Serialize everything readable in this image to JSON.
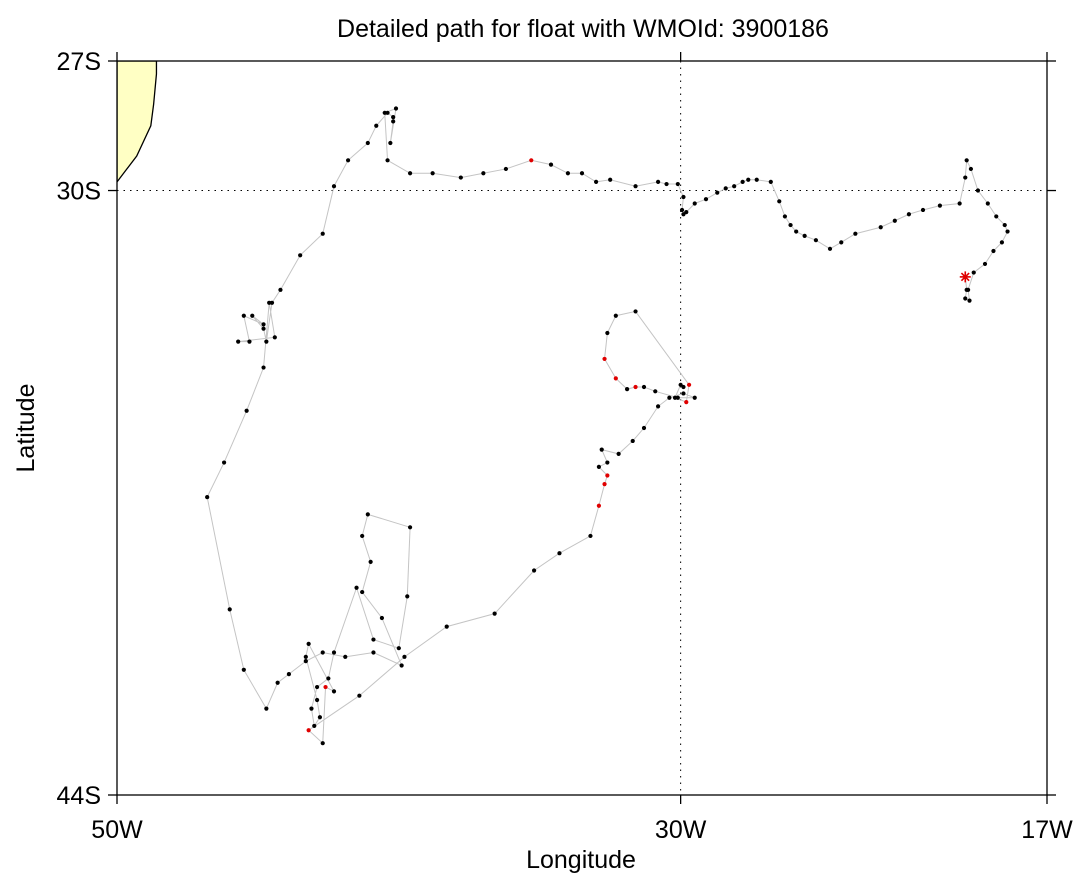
{
  "chart_data": {
    "type": "scatter",
    "title": "Detailed path for float with WMOId: 3900186",
    "xlabel": "Longitude",
    "ylabel": "Latitude",
    "xlim": [
      -50,
      -17
    ],
    "ylim": [
      -44,
      -27
    ],
    "x_ticks": [
      {
        "value": -50,
        "label": "50W"
      },
      {
        "value": -30,
        "label": "30W"
      },
      {
        "value": -17,
        "label": "17W"
      }
    ],
    "y_ticks": [
      {
        "value": -27,
        "label": "27S"
      },
      {
        "value": -30,
        "label": "30S"
      },
      {
        "value": -44,
        "label": "44S"
      }
    ],
    "grid": {
      "x": [
        -30
      ],
      "y": [
        -30
      ],
      "style": "dotted"
    },
    "colors": {
      "path": "#c4c4c4",
      "point": "#000000",
      "highlight": "#e00000",
      "land": "#ffffc4",
      "coast": "#000000"
    },
    "land": [
      [
        -50,
        -27
      ],
      [
        -48.6,
        -27
      ],
      [
        -48.6,
        -27.3
      ],
      [
        -48.7,
        -28.0
      ],
      [
        -48.8,
        -28.5
      ],
      [
        -49.3,
        -29.2
      ],
      [
        -50,
        -29.8
      ]
    ],
    "start": {
      "lon": -19.9,
      "lat": -32.0
    },
    "path": [
      [
        -19.9,
        -32.0,
        0
      ],
      [
        -19.85,
        -32.3,
        0
      ],
      [
        -19.9,
        -32.5,
        0
      ],
      [
        -19.75,
        -32.55,
        0
      ],
      [
        -19.8,
        -32.3,
        0
      ],
      [
        -19.6,
        -31.9,
        0
      ],
      [
        -19.2,
        -31.7,
        0
      ],
      [
        -18.9,
        -31.4,
        0
      ],
      [
        -18.6,
        -31.2,
        0
      ],
      [
        -18.4,
        -30.95,
        0
      ],
      [
        -18.5,
        -30.8,
        0
      ],
      [
        -18.8,
        -30.6,
        0
      ],
      [
        -19.1,
        -30.3,
        0
      ],
      [
        -19.45,
        -30.0,
        0
      ],
      [
        -19.7,
        -29.5,
        0
      ],
      [
        -19.85,
        -29.3,
        0
      ],
      [
        -19.9,
        -29.7,
        0
      ],
      [
        -20.1,
        -30.3,
        0
      ],
      [
        -20.8,
        -30.35,
        0
      ],
      [
        -21.4,
        -30.45,
        0
      ],
      [
        -21.9,
        -30.55,
        0
      ],
      [
        -22.4,
        -30.7,
        0
      ],
      [
        -22.9,
        -30.85,
        0
      ],
      [
        -23.8,
        -31.0,
        0
      ],
      [
        -24.3,
        -31.2,
        0
      ],
      [
        -24.7,
        -31.35,
        0
      ],
      [
        -25.2,
        -31.15,
        0
      ],
      [
        -25.6,
        -31.05,
        0
      ],
      [
        -25.9,
        -30.95,
        0
      ],
      [
        -26.1,
        -30.8,
        0
      ],
      [
        -26.3,
        -30.6,
        0
      ],
      [
        -26.5,
        -30.25,
        0
      ],
      [
        -26.8,
        -29.8,
        0
      ],
      [
        -27.3,
        -29.75,
        0
      ],
      [
        -27.6,
        -29.75,
        0
      ],
      [
        -27.8,
        -29.8,
        0
      ],
      [
        -28.1,
        -29.9,
        0
      ],
      [
        -28.4,
        -29.95,
        0
      ],
      [
        -28.7,
        -30.05,
        0
      ],
      [
        -29.1,
        -30.2,
        0
      ],
      [
        -29.5,
        -30.3,
        0
      ],
      [
        -29.8,
        -30.5,
        0
      ],
      [
        -29.9,
        -30.55,
        0
      ],
      [
        -29.95,
        -30.45,
        0
      ],
      [
        -29.9,
        -30.15,
        0
      ],
      [
        -30.1,
        -29.85,
        0
      ],
      [
        -30.5,
        -29.85,
        0
      ],
      [
        -30.8,
        -29.8,
        0
      ],
      [
        -31.6,
        -29.9,
        0
      ],
      [
        -32.5,
        -29.75,
        0
      ],
      [
        -33.0,
        -29.8,
        0
      ],
      [
        -33.5,
        -29.6,
        0
      ],
      [
        -34.0,
        -29.6,
        0
      ],
      [
        -34.6,
        -29.4,
        0
      ],
      [
        -35.3,
        -29.3,
        1
      ],
      [
        -36.2,
        -29.5,
        0
      ],
      [
        -37.0,
        -29.6,
        0
      ],
      [
        -37.8,
        -29.7,
        0
      ],
      [
        -38.8,
        -29.6,
        0
      ],
      [
        -39.6,
        -29.6,
        0
      ],
      [
        -40.4,
        -29.3,
        0
      ],
      [
        -40.5,
        -28.2,
        0
      ],
      [
        -40.1,
        -28.1,
        0
      ],
      [
        -40.3,
        -28.9,
        0
      ],
      [
        -40.2,
        -28.4,
        0
      ],
      [
        -40.2,
        -28.3,
        0
      ],
      [
        -40.4,
        -28.2,
        0
      ],
      [
        -40.8,
        -28.5,
        0
      ],
      [
        -41.1,
        -28.9,
        0
      ],
      [
        -41.8,
        -29.3,
        0
      ],
      [
        -42.3,
        -29.9,
        0
      ],
      [
        -42.7,
        -31.0,
        0
      ],
      [
        -43.5,
        -31.5,
        0
      ],
      [
        -44.2,
        -32.3,
        0
      ],
      [
        -44.5,
        -32.6,
        0
      ],
      [
        -44.7,
        -33.5,
        0
      ],
      [
        -44.8,
        -33.2,
        0
      ],
      [
        -45.2,
        -32.9,
        0
      ],
      [
        -44.8,
        -33.1,
        0
      ],
      [
        -45.5,
        -32.9,
        0
      ],
      [
        -45.3,
        -33.5,
        0
      ],
      [
        -45.7,
        -33.5,
        0
      ],
      [
        -44.4,
        -33.4,
        0
      ],
      [
        -44.6,
        -32.6,
        0
      ],
      [
        -44.8,
        -34.1,
        0
      ],
      [
        -45.4,
        -35.1,
        0
      ],
      [
        -46.2,
        -36.3,
        0
      ],
      [
        -46.8,
        -37.1,
        0
      ],
      [
        -46.0,
        -39.7,
        0
      ],
      [
        -45.5,
        -41.1,
        0
      ],
      [
        -44.7,
        -42.0,
        0
      ],
      [
        -44.3,
        -41.4,
        0
      ],
      [
        -43.9,
        -41.2,
        0
      ],
      [
        -43.3,
        -40.9,
        0
      ],
      [
        -42.7,
        -40.7,
        0
      ],
      [
        -41.9,
        -40.8,
        0
      ],
      [
        -40.9,
        -40.7,
        0
      ],
      [
        -39.9,
        -41.0,
        0
      ],
      [
        -40.6,
        -39.9,
        0
      ],
      [
        -41.3,
        -39.3,
        0
      ],
      [
        -41.0,
        -38.6,
        0
      ],
      [
        -41.3,
        -38.0,
        0
      ],
      [
        -41.1,
        -37.5,
        0
      ],
      [
        -39.6,
        -37.8,
        0
      ],
      [
        -39.7,
        -39.4,
        0
      ],
      [
        -40.0,
        -40.6,
        0
      ],
      [
        -40.9,
        -40.4,
        0
      ],
      [
        -41.5,
        -39.2,
        0
      ],
      [
        -42.3,
        -40.7,
        0
      ],
      [
        -42.5,
        -41.3,
        0
      ],
      [
        -42.9,
        -41.5,
        0
      ],
      [
        -43.1,
        -42.0,
        0
      ],
      [
        -43.0,
        -42.4,
        0
      ],
      [
        -42.8,
        -42.2,
        0
      ],
      [
        -42.9,
        -41.8,
        0
      ],
      [
        -43.3,
        -40.8,
        0
      ],
      [
        -43.2,
        -40.5,
        0
      ],
      [
        -42.3,
        -41.6,
        0
      ],
      [
        -42.6,
        -41.5,
        1
      ],
      [
        -42.7,
        -42.8,
        0
      ],
      [
        -43.2,
        -42.5,
        1
      ],
      [
        -41.4,
        -41.7,
        0
      ],
      [
        -39.8,
        -40.8,
        0
      ],
      [
        -38.3,
        -40.1,
        0
      ],
      [
        -36.6,
        -39.8,
        0
      ],
      [
        -35.2,
        -38.8,
        0
      ],
      [
        -34.3,
        -38.4,
        0
      ],
      [
        -33.2,
        -38.0,
        0
      ],
      [
        -32.9,
        -37.3,
        1
      ],
      [
        -32.7,
        -36.8,
        1
      ],
      [
        -32.6,
        -36.6,
        1
      ],
      [
        -32.9,
        -36.4,
        0
      ],
      [
        -32.6,
        -36.3,
        0
      ],
      [
        -32.8,
        -36.0,
        0
      ],
      [
        -32.2,
        -36.1,
        0
      ],
      [
        -31.7,
        -35.8,
        0
      ],
      [
        -31.3,
        -35.5,
        0
      ],
      [
        -30.8,
        -35.0,
        0
      ],
      [
        -30.4,
        -34.8,
        0
      ],
      [
        -29.9,
        -34.7,
        0
      ],
      [
        -29.5,
        -34.8,
        0
      ],
      [
        -30.1,
        -34.8,
        0
      ],
      [
        -30.9,
        -34.65,
        0
      ],
      [
        -31.3,
        -34.55,
        0
      ],
      [
        -31.6,
        -34.55,
        1
      ],
      [
        -31.9,
        -34.6,
        0
      ],
      [
        -32.3,
        -34.35,
        1
      ],
      [
        -32.7,
        -33.9,
        1
      ],
      [
        -32.6,
        -33.3,
        0
      ],
      [
        -32.3,
        -32.9,
        0
      ],
      [
        -31.6,
        -32.8,
        0
      ],
      [
        -29.7,
        -34.5,
        1
      ],
      [
        -29.8,
        -34.9,
        1
      ],
      [
        -30.2,
        -34.8,
        0
      ],
      [
        -30.0,
        -34.5,
        0
      ],
      [
        -29.9,
        -34.55,
        0
      ]
    ]
  }
}
